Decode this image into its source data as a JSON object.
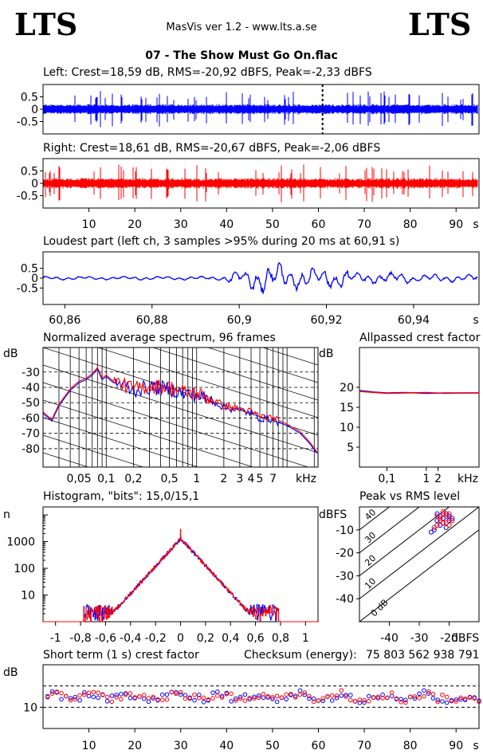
{
  "header": {
    "logo_left": "LTS",
    "logo_right": "LTS",
    "app_title": "MasVis ver 1.2 - www.lts.a.se",
    "file_title": "07 - The Show Must Go On.flac"
  },
  "colors": {
    "left": "#0000ff",
    "right": "#ff0000",
    "frame": "#000000",
    "background": "#ffffff"
  },
  "chart_data": [
    {
      "type": "area",
      "title": "Left: Crest=18,59 dB, RMS=-20,92 dBFS, Peak=-2,33 dBFS",
      "channel": "left",
      "crest_db": 18.59,
      "rms_dbfs": -20.92,
      "peak_dbfs": -2.33,
      "y_ticks": [
        "0.5",
        "0",
        "-0.5"
      ],
      "ylim": [
        -1,
        1
      ],
      "xlim": [
        0,
        95
      ],
      "marker_x_seconds": 60.91,
      "grid": false
    },
    {
      "type": "area",
      "title": "Right: Crest=18,61 dB, RMS=-20,67 dBFS, Peak=-2,06 dBFS",
      "channel": "right",
      "crest_db": 18.61,
      "rms_dbfs": -20.67,
      "peak_dbfs": -2.06,
      "y_ticks": [
        "0.5",
        "0",
        "-0.5"
      ],
      "ylim": [
        -1,
        1
      ],
      "xlim": [
        0,
        95
      ],
      "x_ticks": [
        "10",
        "20",
        "30",
        "40",
        "50",
        "60",
        "70",
        "80",
        "90"
      ],
      "x_unit": "s",
      "grid": false
    },
    {
      "type": "line",
      "title": "Loudest part (left  ch, 3 samples >95% during 20 ms at 60,91 s)",
      "y_ticks": [
        "0.5",
        "0",
        "-0.5"
      ],
      "ylim": [
        -1,
        1
      ],
      "xlim": [
        60.855,
        60.955
      ],
      "x_ticks": [
        "60,86",
        "60,88",
        "60,9",
        "60,92",
        "60,94"
      ],
      "x_unit": "s",
      "grid": false
    },
    {
      "type": "line",
      "title": "Normalized average spectrum, 96 frames",
      "ylabel": "dB",
      "y_ticks": [
        "-30",
        "-40",
        "-50",
        "-60",
        "-70",
        "-80"
      ],
      "ylim": [
        -92,
        -14
      ],
      "x_ticks": [
        "0,05",
        "0,1",
        "0,2",
        "0,5",
        "1",
        "2",
        "3",
        "4",
        "5",
        "7"
      ],
      "x_unit": "kHz",
      "xscale": "log",
      "xlim_khz": [
        0.02,
        22
      ],
      "series": [
        {
          "channel": "left",
          "points_khz_db": [
            [
              0.02,
              -57
            ],
            [
              0.025,
              -62
            ],
            [
              0.03,
              -52
            ],
            [
              0.04,
              -42
            ],
            [
              0.05,
              -37
            ],
            [
              0.06,
              -35
            ],
            [
              0.07,
              -32
            ],
            [
              0.08,
              -28
            ],
            [
              0.09,
              -35
            ],
            [
              0.1,
              -33
            ],
            [
              0.12,
              -37
            ],
            [
              0.15,
              -38
            ],
            [
              0.2,
              -42
            ],
            [
              0.3,
              -40
            ],
            [
              0.5,
              -41
            ],
            [
              0.7,
              -44
            ],
            [
              1,
              -45
            ],
            [
              1.5,
              -49
            ],
            [
              2,
              -53
            ],
            [
              3,
              -55
            ],
            [
              4,
              -57
            ],
            [
              5,
              -60
            ],
            [
              7,
              -61
            ],
            [
              10,
              -65
            ],
            [
              14,
              -70
            ],
            [
              18,
              -77
            ],
            [
              22,
              -84
            ]
          ]
        },
        {
          "channel": "right",
          "points_khz_db": [
            [
              0.02,
              -56
            ],
            [
              0.025,
              -61
            ],
            [
              0.03,
              -51
            ],
            [
              0.04,
              -41
            ],
            [
              0.05,
              -36
            ],
            [
              0.06,
              -34
            ],
            [
              0.07,
              -31
            ],
            [
              0.08,
              -27
            ],
            [
              0.09,
              -34
            ],
            [
              0.1,
              -32
            ],
            [
              0.12,
              -36
            ],
            [
              0.15,
              -38
            ],
            [
              0.2,
              -41
            ],
            [
              0.3,
              -39
            ],
            [
              0.5,
              -40
            ],
            [
              0.7,
              -43
            ],
            [
              1,
              -44
            ],
            [
              1.5,
              -48
            ],
            [
              2,
              -52
            ],
            [
              3,
              -54
            ],
            [
              4,
              -56
            ],
            [
              5,
              -59
            ],
            [
              7,
              -60
            ],
            [
              10,
              -64
            ],
            [
              14,
              -69
            ],
            [
              18,
              -76
            ],
            [
              22,
              -83
            ]
          ]
        }
      ]
    },
    {
      "type": "line",
      "title": "Allpassed crest factor",
      "ylabel": "dB",
      "y_ticks": [
        "20",
        "15",
        "10",
        "5"
      ],
      "ylim": [
        0,
        30
      ],
      "x_ticks": [
        "0,1",
        "1",
        "2"
      ],
      "x_unit": "kHz",
      "xscale": "log",
      "xlim_khz": [
        0.02,
        22
      ],
      "series": [
        {
          "channel": "left",
          "points_khz_db": [
            [
              0.02,
              19.2
            ],
            [
              0.05,
              18.8
            ],
            [
              0.1,
              18.6
            ],
            [
              0.3,
              18.7
            ],
            [
              1,
              18.5
            ],
            [
              3,
              18.6
            ],
            [
              10,
              18.6
            ],
            [
              22,
              18.6
            ]
          ]
        },
        {
          "channel": "right",
          "points_khz_db": [
            [
              0.02,
              19.0
            ],
            [
              0.05,
              18.7
            ],
            [
              0.1,
              18.5
            ],
            [
              0.3,
              18.6
            ],
            [
              1,
              18.7
            ],
            [
              3,
              18.5
            ],
            [
              10,
              18.6
            ],
            [
              22,
              18.6
            ]
          ]
        }
      ]
    },
    {
      "type": "line",
      "title": "Histogram, \"bits\": 15,0/15,1",
      "ylabel": "n",
      "yscale": "log",
      "y_ticks": [
        "1000",
        "100",
        "10"
      ],
      "ylim": [
        1,
        20000
      ],
      "x_ticks": [
        "-1",
        "-0,8",
        "-0,6",
        "-0,4",
        "-0,2",
        "0",
        "0,2",
        "0,4",
        "0,6",
        "0,8",
        "1"
      ],
      "xlim": [
        -1.1,
        1.1
      ],
      "peak_count": 1300,
      "series": [
        {
          "channel": "left"
        },
        {
          "channel": "right"
        }
      ]
    },
    {
      "type": "scatter",
      "title": "Peak vs RMS level",
      "ylabel": "dBFS",
      "xlabel": "dBFS",
      "y_ticks": [
        "-10",
        "-20",
        "-30",
        "-40"
      ],
      "ylim": [
        -50,
        0
      ],
      "x_ticks": [
        "-40",
        "-30",
        "-20"
      ],
      "xlim": [
        -50,
        -10
      ],
      "diagonal_labels": [
        "40",
        "30",
        "20",
        "10",
        "0 dB"
      ],
      "series": [
        {
          "channel": "left",
          "points": [
            [
              -22,
              -5
            ],
            [
              -24,
              -6
            ],
            [
              -20,
              -4
            ],
            [
              -23,
              -8
            ],
            [
              -21,
              -3
            ],
            [
              -25,
              -10
            ],
            [
              -22,
              -7
            ],
            [
              -19,
              -5
            ],
            [
              -26,
              -11
            ],
            [
              -20,
              -6
            ],
            [
              -23,
              -4
            ],
            [
              -21,
              -9
            ],
            [
              -24,
              -3
            ],
            [
              -22,
              -5
            ]
          ]
        },
        {
          "channel": "right",
          "points": [
            [
              -21,
              -4
            ],
            [
              -23,
              -5
            ],
            [
              -20,
              -3
            ],
            [
              -22,
              -7
            ],
            [
              -24,
              -8
            ],
            [
              -19,
              -6
            ],
            [
              -22,
              -2
            ],
            [
              -25,
              -9
            ],
            [
              -20,
              -5
            ],
            [
              -23,
              -6
            ],
            [
              -21,
              -7
            ],
            [
              -24,
              -4
            ],
            [
              -22,
              -3
            ],
            [
              -20,
              -8
            ]
          ]
        }
      ]
    },
    {
      "type": "scatter",
      "title": "Short term (1 s) crest factor",
      "ylabel": "dB",
      "checksum_label": "Checksum (energy):",
      "checksum_value": "75 803 562 938 791",
      "y_ticks": [
        "10"
      ],
      "ylim": [
        0,
        30
      ],
      "x_ticks": [
        "10",
        "20",
        "30",
        "40",
        "50",
        "60",
        "70",
        "80",
        "90"
      ],
      "x_unit": "s",
      "xlim": [
        0,
        95
      ],
      "dashed_lines": [
        10,
        20
      ]
    }
  ]
}
